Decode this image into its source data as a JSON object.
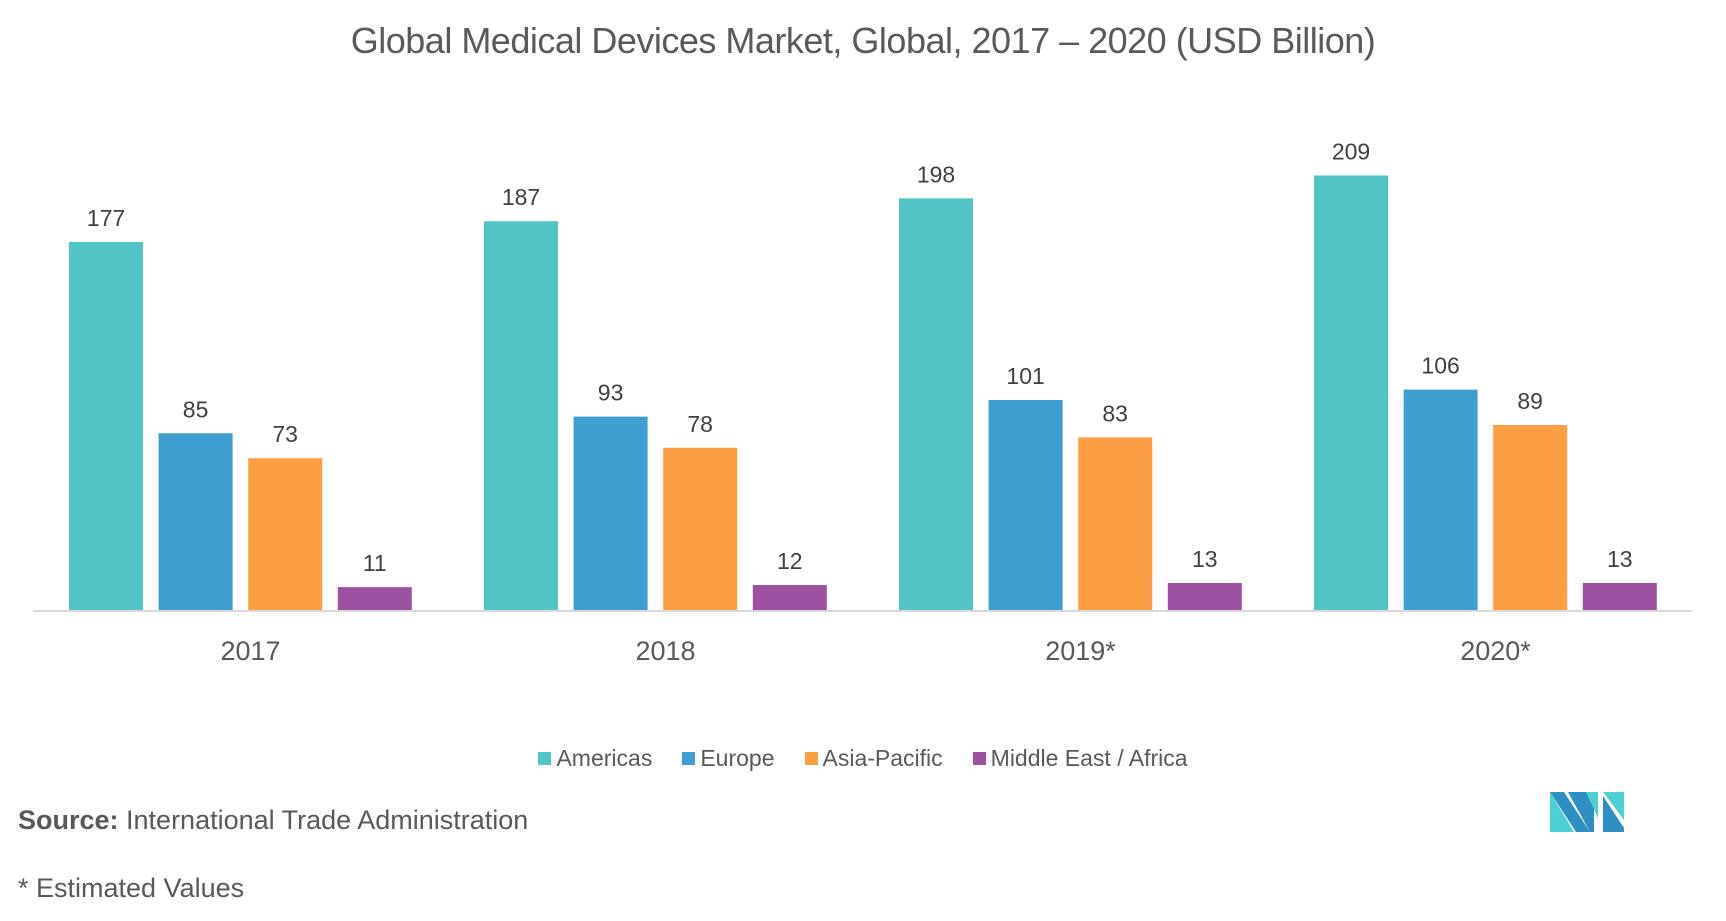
{
  "title": "Global Medical Devices Market, Global, 2017 – 2020 (USD Billion)",
  "footer": {
    "source_label": "Source:",
    "source_text": " International Trade Administration",
    "note": "* Estimated Values"
  },
  "logo": {
    "name": "mordor-intelligence-logo",
    "colors": [
      "#2e8fc0",
      "#4ecfd4"
    ]
  },
  "chart_data": {
    "type": "bar",
    "title": "Global Medical Devices Market, Global, 2017 – 2020 (USD Billion)",
    "xlabel": "",
    "ylabel": "",
    "categories": [
      "2017",
      "2018",
      "2019*",
      "2020*"
    ],
    "series": [
      {
        "name": "Americas",
        "color": "#52c4c5",
        "values": [
          177,
          187,
          198,
          209
        ]
      },
      {
        "name": "Europe",
        "color": "#3d9ecf",
        "values": [
          85,
          93,
          101,
          106
        ]
      },
      {
        "name": "Asia-Pacific",
        "color": "#fb9e44",
        "values": [
          73,
          78,
          83,
          89
        ]
      },
      {
        "name": "Middle East / Africa",
        "color": "#9c52a0",
        "values": [
          11,
          12,
          13,
          13
        ]
      }
    ],
    "ylim": [
      0,
      209
    ],
    "grid": false,
    "y_axis_visible": false,
    "data_labels": true,
    "legend_position": "bottom"
  }
}
